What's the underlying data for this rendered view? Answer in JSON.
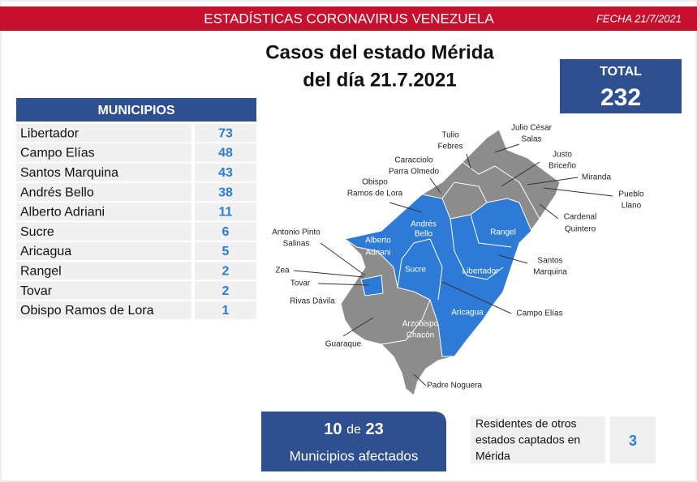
{
  "header": {
    "title": "ESTADÍSTICAS CORONAVIRUS VENEZUELA",
    "date": "FECHA 21/7/2021"
  },
  "title": {
    "lines": [
      "Casos del estado Mérida",
      "del día 21.7.2021"
    ]
  },
  "total": {
    "label": "TOTAL",
    "value": 232
  },
  "table": {
    "header": "MUNICIPIOS",
    "rows": [
      [
        "Libertador",
        73
      ],
      [
        "Campo Elías",
        48
      ],
      [
        "Santos Marquina",
        43
      ],
      [
        "Andrés Bello",
        38
      ],
      [
        "Alberto Adriani",
        11
      ],
      [
        "Sucre",
        6
      ],
      [
        "Aricagua",
        5
      ],
      [
        "Rangel",
        2
      ],
      [
        "Tovar",
        2
      ],
      [
        "Obispo Ramos de Lora",
        1
      ]
    ]
  },
  "map": {
    "labels": [
      {
        "lines": [
          "Tulio",
          "Febres"
        ]
      },
      {
        "lines": [
          "Julio César",
          "Salas"
        ]
      },
      {
        "lines": [
          "Justo",
          "Briceño"
        ]
      },
      {
        "lines": [
          "Miranda"
        ]
      },
      {
        "lines": [
          "Pueblo",
          "Llano"
        ]
      },
      {
        "lines": [
          "Cardenal",
          "Quintero"
        ]
      },
      {
        "lines": [
          "Caracciolo",
          "Parra Olmedo"
        ]
      },
      {
        "lines": [
          "Obispo",
          "Ramos de Lora"
        ]
      },
      {
        "lines": [
          "Antonio Pinto",
          "Salinas"
        ]
      },
      {
        "lines": [
          "Andrés",
          "Bello"
        ]
      },
      {
        "lines": [
          "Alberto",
          "Adriani"
        ]
      },
      {
        "lines": [
          "Rangel"
        ]
      },
      {
        "lines": [
          "Santos",
          "Marquina"
        ]
      },
      {
        "lines": [
          "Sucre"
        ]
      },
      {
        "lines": [
          "Libertador"
        ]
      },
      {
        "lines": [
          "Zea"
        ]
      },
      {
        "lines": [
          "Tovar"
        ]
      },
      {
        "lines": [
          "Rivas Dávila"
        ]
      },
      {
        "lines": [
          "Campo Elías"
        ]
      },
      {
        "lines": [
          "Aricagua"
        ]
      },
      {
        "lines": [
          "Arzobispo",
          "Chacón"
        ]
      },
      {
        "lines": [
          "Guaraque"
        ]
      },
      {
        "lines": [
          "Padre Noguera"
        ]
      }
    ]
  },
  "affected": {
    "count": 10,
    "connector": "de",
    "of": 23,
    "label": "Municipios afectados"
  },
  "residents": {
    "lines": [
      "Residentes de otros",
      "estados captados en",
      "Mérida"
    ],
    "value": 3
  }
}
